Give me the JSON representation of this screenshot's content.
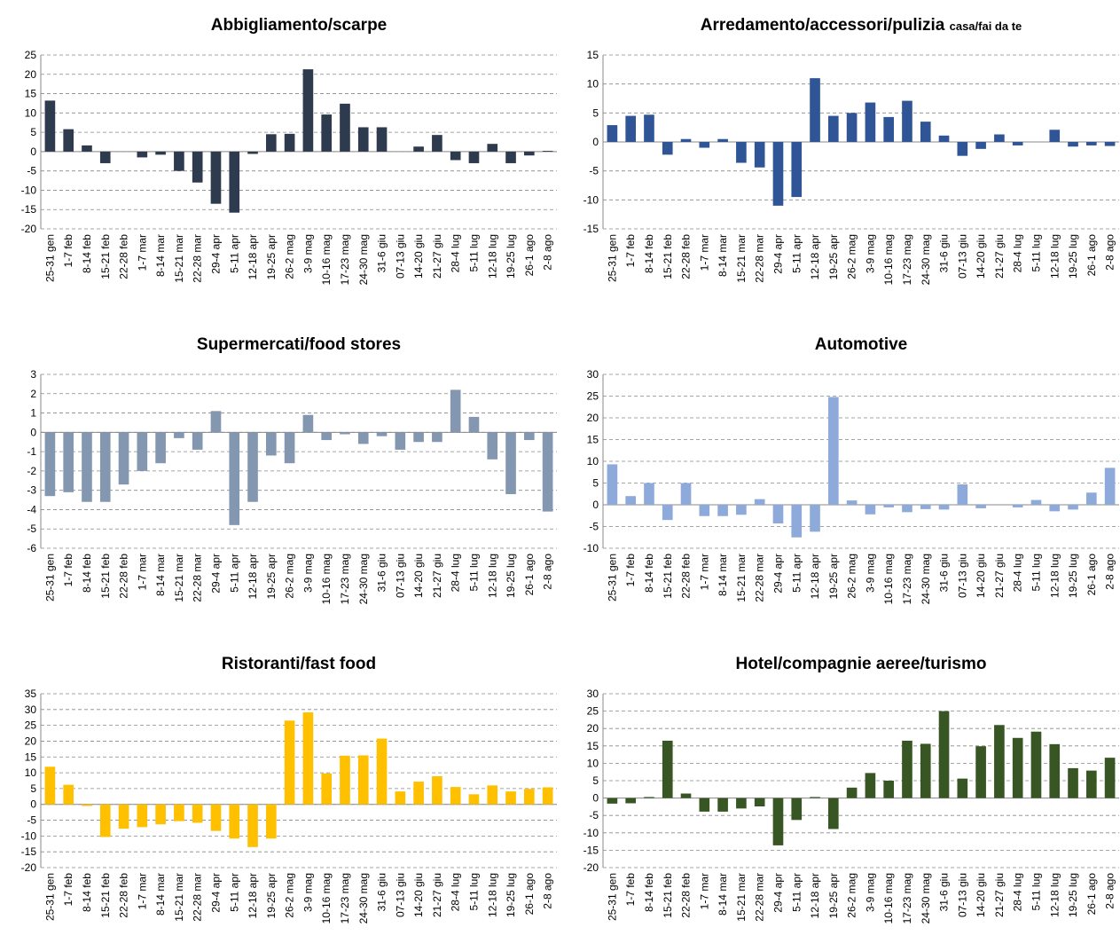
{
  "chart_data": [
    {
      "type": "bar",
      "title": "Abbigliamento/scarpe",
      "color": "#2e3a4e",
      "grid": true,
      "categories": [
        "25-31 gen",
        "1-7 feb",
        "8-14 feb",
        "15-21 feb",
        "22-28 feb",
        "1-7 mar",
        "8-14 mar",
        "15-21 mar",
        "22-28 mar",
        "29-4 apr",
        "5-11 apr",
        "12-18 apr",
        "19-25 apr",
        "26-2 mag",
        "3-9 mag",
        "10-16 mag",
        "17-23 mag",
        "24-30 mag",
        "31-6 giu",
        "07-13 giu",
        "14-20 giu",
        "21-27 giu",
        "28-4 lug",
        "5-11 lug",
        "12-18 lug",
        "19-25 lug",
        "26-1 ago",
        "2-8 ago"
      ],
      "values": [
        13.2,
        5.8,
        1.6,
        -3,
        0,
        -1.5,
        -0.8,
        -5,
        -8,
        -13.5,
        -15.8,
        -0.6,
        4.5,
        4.6,
        21.3,
        9.6,
        12.4,
        6.3,
        6.3,
        0,
        1.3,
        4.3,
        -2.2,
        -3,
        2,
        -3,
        -1,
        0.2
      ],
      "ylim": [
        -20,
        25
      ],
      "yticks": [
        -20,
        -15,
        -10,
        -5,
        0,
        5,
        10,
        15,
        20,
        25
      ]
    },
    {
      "type": "bar",
      "title": "Arredamento/accessori/pulizia",
      "title_small": "casa/fai da te",
      "color": "#2f5597",
      "grid": true,
      "categories": [
        "25-31 gen",
        "1-7 feb",
        "8-14 feb",
        "15-21 feb",
        "22-28 feb",
        "1-7 mar",
        "8-14 mar",
        "15-21 mar",
        "22-28 mar",
        "29-4 apr",
        "5-11 apr",
        "12-18 apr",
        "19-25 apr",
        "26-2 mag",
        "3-9 mag",
        "10-16 mag",
        "17-23 mag",
        "24-30 mag",
        "31-6 giu",
        "07-13 giu",
        "14-20 giu",
        "21-27 giu",
        "28-4 lug",
        "5-11 lug",
        "12-18 lug",
        "19-25 lug",
        "26-1 ago",
        "2-8 ago"
      ],
      "values": [
        2.9,
        4.5,
        4.7,
        -2.2,
        0.5,
        -1,
        0.5,
        -3.6,
        -4.4,
        -11,
        -9.5,
        11,
        4.5,
        5,
        6.8,
        4.3,
        7.1,
        3.5,
        1.1,
        -2.4,
        -1.2,
        1.3,
        -0.6,
        0,
        2.1,
        -0.8,
        -0.6,
        -0.7
      ],
      "ylim": [
        -15,
        15
      ],
      "yticks": [
        -15,
        -10,
        -5,
        0,
        5,
        10,
        15
      ]
    },
    {
      "type": "bar",
      "title": "Supermercati/food stores",
      "color": "#8497b0",
      "grid": true,
      "categories": [
        "25-31 gen",
        "1-7 feb",
        "8-14 feb",
        "15-21 feb",
        "22-28 feb",
        "1-7 mar",
        "8-14 mar",
        "15-21 mar",
        "22-28 mar",
        "29-4 apr",
        "5-11 apr",
        "12-18 apr",
        "19-25 apr",
        "26-2 mag",
        "3-9 mag",
        "10-16 mag",
        "17-23 mag",
        "24-30 mag",
        "31-6 giu",
        "07-13 giu",
        "14-20 giu",
        "21-27 giu",
        "28-4 lug",
        "5-11 lug",
        "12-18 lug",
        "19-25 lug",
        "26-1 ago",
        "2-8 ago"
      ],
      "values": [
        -3.3,
        -3.1,
        -3.6,
        -3.6,
        -2.7,
        -2,
        -1.6,
        -0.3,
        -0.9,
        1.1,
        -4.8,
        -3.6,
        -1.2,
        -1.6,
        0.9,
        -0.4,
        -0.1,
        -0.6,
        -0.2,
        -0.9,
        -0.5,
        -0.5,
        2.2,
        0.8,
        -1.4,
        -3.2,
        -0.4,
        -4.1
      ],
      "ylim": [
        -6,
        3
      ],
      "yticks": [
        -6,
        -5,
        -4,
        -3,
        -2,
        -1,
        0,
        1,
        2,
        3
      ]
    },
    {
      "type": "bar",
      "title": "Automotive",
      "color": "#8eaadb",
      "grid": true,
      "categories": [
        "25-31 gen",
        "1-7 feb",
        "8-14 feb",
        "15-21 feb",
        "22-28 feb",
        "1-7 mar",
        "8-14 mar",
        "15-21 mar",
        "22-28 mar",
        "29-4 apr",
        "5-11 apr",
        "12-18 apr",
        "19-25 apr",
        "26-2 mag",
        "3-9 mag",
        "10-16 mag",
        "17-23 mag",
        "24-30 mag",
        "31-6 giu",
        "07-13 giu",
        "14-20 giu",
        "21-27 giu",
        "28-4 lug",
        "5-11 lug",
        "12-18 lug",
        "19-25 lug",
        "26-1 ago",
        "2-8 ago"
      ],
      "values": [
        9.3,
        2,
        5,
        -3.5,
        5,
        -2.6,
        -2.6,
        -2.3,
        1.3,
        -4.3,
        -7.5,
        -6.2,
        24.8,
        1,
        -2.2,
        -0.6,
        -1.7,
        -1,
        -1.1,
        4.7,
        -0.8,
        0,
        -0.6,
        1.1,
        -1.5,
        -1.1,
        2.8,
        8.5
      ],
      "ylim": [
        -10,
        30
      ],
      "yticks": [
        -10,
        -5,
        0,
        5,
        10,
        15,
        20,
        25,
        30
      ]
    },
    {
      "type": "bar",
      "title": "Ristoranti/fast food",
      "color": "#ffc000",
      "grid": true,
      "categories": [
        "25-31 gen",
        "1-7 feb",
        "8-14 feb",
        "15-21 feb",
        "22-28 feb",
        "1-7 mar",
        "8-14 mar",
        "15-21 mar",
        "22-28 mar",
        "29-4 apr",
        "5-11 apr",
        "12-18 apr",
        "19-25 apr",
        "26-2 mag",
        "3-9 mag",
        "10-16 mag",
        "17-23 mag",
        "24-30 mag",
        "31-6 giu",
        "07-13 giu",
        "14-20 giu",
        "21-27 giu",
        "28-4 lug",
        "5-11 lug",
        "12-18 lug",
        "19-25 lug",
        "26-1 ago",
        "2-8 ago"
      ],
      "values": [
        11.9,
        6.2,
        -0.5,
        -10.3,
        -7.7,
        -7.2,
        -6.3,
        -5.3,
        -5.8,
        -8.4,
        -10.8,
        -13.5,
        -10.8,
        26.5,
        29.1,
        9.8,
        15.4,
        15.5,
        20.8,
        4.1,
        7.2,
        8.9,
        5.5,
        3.2,
        6,
        4.1,
        4.9,
        5.4
      ],
      "ylim": [
        -20,
        35
      ],
      "yticks": [
        -20,
        -15,
        -10,
        -5,
        0,
        5,
        10,
        15,
        20,
        25,
        30,
        35
      ]
    },
    {
      "type": "bar",
      "title": "Hotel/compagnie aeree/turismo",
      "color": "#375623",
      "grid": true,
      "categories": [
        "25-31 gen",
        "1-7 feb",
        "8-14 feb",
        "15-21 feb",
        "22-28 feb",
        "1-7 mar",
        "8-14 mar",
        "15-21 mar",
        "22-28 mar",
        "29-4 apr",
        "5-11 apr",
        "12-18 apr",
        "19-25 apr",
        "26-2 mag",
        "3-9 mag",
        "10-16 mag",
        "17-23 mag",
        "24-30 mag",
        "31-6 giu",
        "07-13 giu",
        "14-20 giu",
        "21-27 giu",
        "28-4 lug",
        "5-11 lug",
        "12-18 lug",
        "19-25 lug",
        "26-1 ago",
        "2-8 ago"
      ],
      "values": [
        -1.6,
        -1.5,
        0.3,
        16.5,
        1.3,
        -3.9,
        -3.9,
        -3,
        -2.4,
        -13.6,
        -6.3,
        0.3,
        -8.9,
        3,
        7.2,
        5,
        16.5,
        15.6,
        25,
        5.6,
        14.9,
        21,
        17.3,
        19.1,
        15.5,
        8.6,
        7.9,
        11.6
      ],
      "ylim": [
        -20,
        30
      ],
      "yticks": [
        -20,
        -15,
        -10,
        -5,
        0,
        5,
        10,
        15,
        20,
        25,
        30
      ]
    }
  ]
}
